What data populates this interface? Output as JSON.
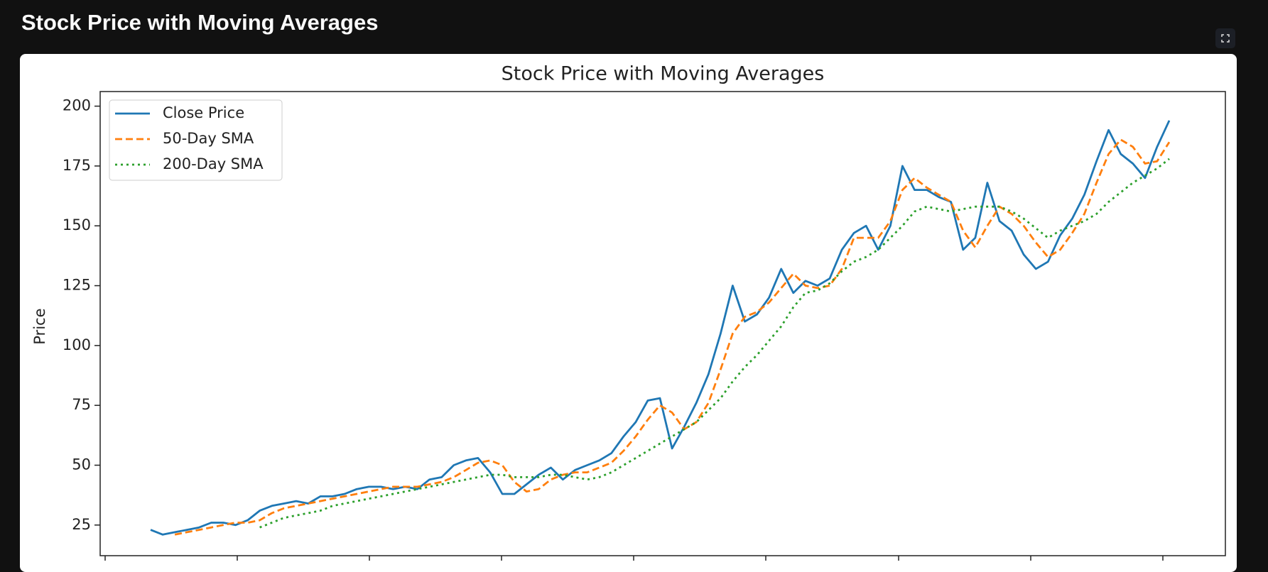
{
  "header": {
    "title": "Stock Price with Moving Averages"
  },
  "chart_data": {
    "type": "line",
    "title": "Stock Price with Moving Averages",
    "y_label": "Price",
    "ylim": [
      12.2,
      206.1
    ],
    "yticks": [
      25,
      50,
      75,
      100,
      125,
      150,
      175,
      200
    ],
    "grid": false,
    "legend": "upper left",
    "series": [
      {
        "name": "Close Price",
        "color": "#1f77b4",
        "linestyle": "solid",
        "values": [
          23,
          21,
          22,
          23,
          24,
          26,
          26,
          25,
          27,
          31,
          33,
          34,
          35,
          34,
          37,
          37,
          38,
          40,
          41,
          41,
          40,
          41,
          40,
          44,
          45,
          50,
          52,
          53,
          47,
          38,
          38,
          42,
          46,
          49,
          44,
          48,
          50,
          52,
          55,
          62,
          68,
          77,
          78,
          57,
          66,
          76,
          88,
          105,
          125,
          110,
          113,
          120,
          132,
          122,
          127,
          125,
          128,
          140,
          147,
          150,
          140,
          150,
          175,
          165,
          165,
          162,
          160,
          140,
          145,
          168,
          152,
          148,
          138,
          132,
          135,
          146,
          153,
          163,
          177,
          190,
          180,
          176,
          170,
          183,
          194
        ]
      },
      {
        "name": "50-Day SMA",
        "color": "#ff7f0e",
        "linestyle": "dashed",
        "values": [
          null,
          null,
          21,
          22,
          23,
          24,
          25,
          26,
          26,
          27,
          30,
          32,
          33,
          34,
          35,
          36,
          37,
          38,
          39,
          40,
          41,
          41,
          41,
          42,
          43,
          45,
          48,
          51,
          52,
          50,
          43,
          39,
          40,
          44,
          46,
          47,
          47,
          49,
          51,
          56,
          62,
          69,
          75,
          72,
          65,
          68,
          76,
          90,
          105,
          112,
          114,
          118,
          124,
          130,
          125,
          124,
          125,
          132,
          145,
          145,
          145,
          152,
          165,
          170,
          166,
          163,
          160,
          148,
          141,
          150,
          158,
          155,
          150,
          143,
          137,
          140,
          147,
          155,
          168,
          180,
          186,
          183,
          176,
          177,
          185
        ]
      },
      {
        "name": "200-Day SMA",
        "color": "#2ca02c",
        "linestyle": "dotted",
        "values": [
          null,
          null,
          null,
          null,
          null,
          null,
          null,
          null,
          null,
          24,
          26,
          28,
          29,
          30,
          31,
          33,
          34,
          35,
          36,
          37,
          38,
          39,
          40,
          41,
          42,
          43,
          44,
          45,
          46,
          46,
          45,
          45,
          45,
          46,
          46,
          45,
          44,
          45,
          47,
          50,
          53,
          56,
          59,
          62,
          65,
          68,
          73,
          78,
          85,
          91,
          96,
          102,
          108,
          116,
          122,
          123,
          126,
          131,
          135,
          137,
          140,
          145,
          150,
          156,
          158,
          157,
          156,
          157,
          158,
          158,
          158,
          156,
          153,
          149,
          145,
          148,
          150,
          152,
          155,
          160,
          164,
          168,
          171,
          174,
          178
        ]
      }
    ]
  }
}
